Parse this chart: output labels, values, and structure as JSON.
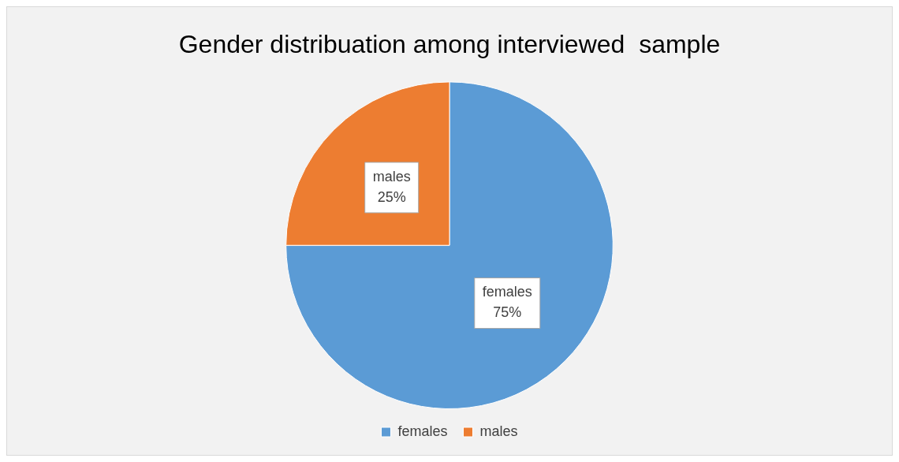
{
  "chart_data": {
    "type": "pie",
    "title": "Gender distribuation among interviewed  sample",
    "categories": [
      "females",
      "males"
    ],
    "values": [
      75,
      25
    ],
    "value_labels": [
      "75%",
      "25%"
    ],
    "colors": [
      "#5b9bd5",
      "#ed7d31"
    ],
    "legend": "bottom"
  }
}
